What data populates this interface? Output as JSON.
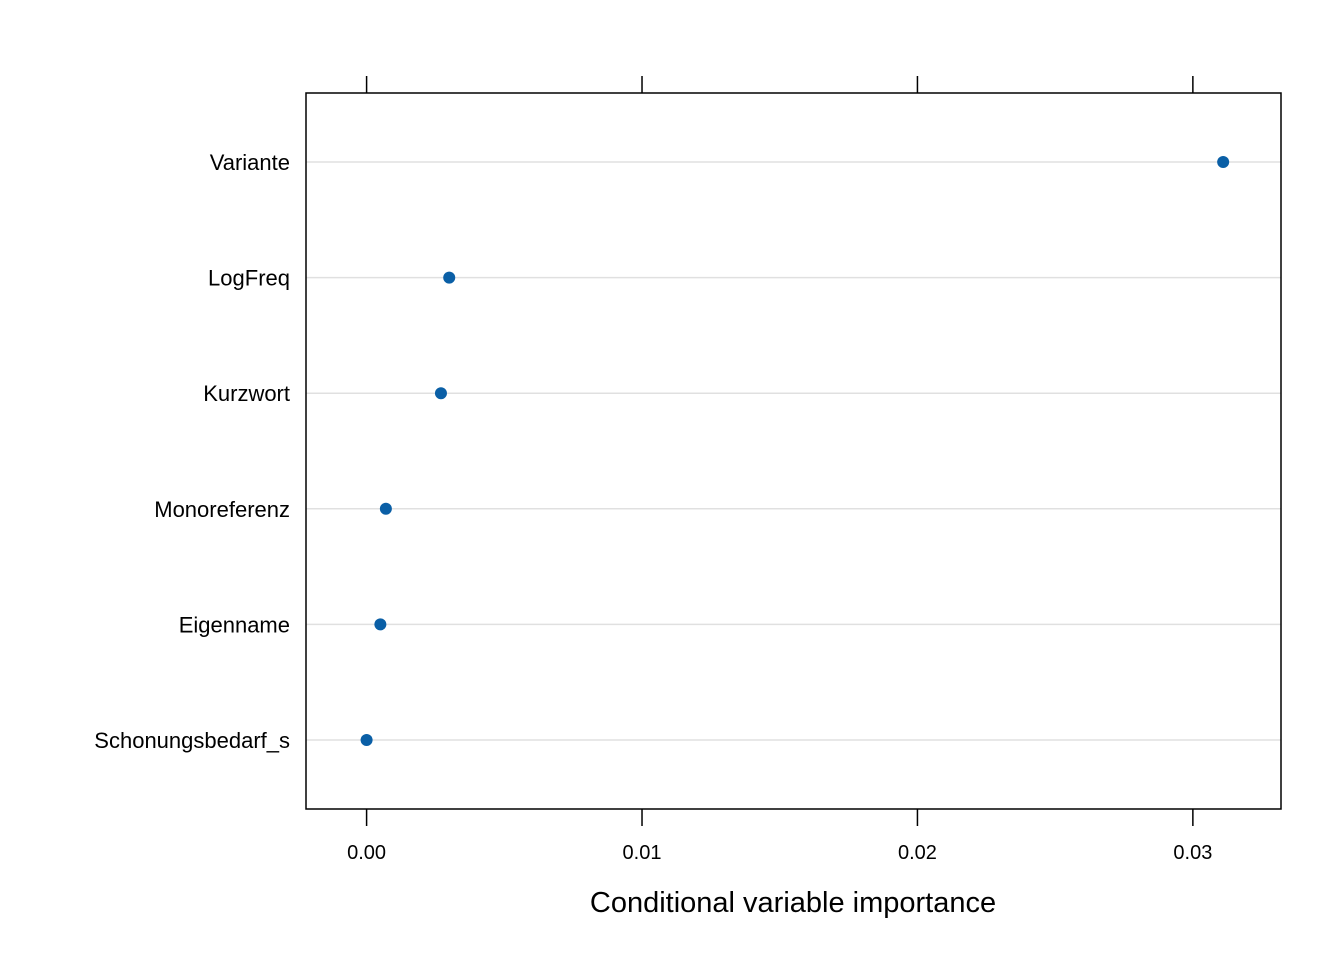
{
  "chart_data": {
    "type": "scatter",
    "subtype": "dotplot",
    "xlabel": "Conditional variable importance",
    "categories": [
      "Variante",
      "LogFreq",
      "Kurzwort",
      "Monoreferenz",
      "Eigenname",
      "Schonungsbedarf_s"
    ],
    "values": [
      0.0311,
      0.003,
      0.0027,
      0.0007,
      0.0005,
      0.0
    ],
    "xlim": [
      -0.0022,
      0.0332
    ],
    "x_ticks": [
      0.0,
      0.01,
      0.02,
      0.03
    ],
    "x_tick_labels": [
      "0.00",
      "0.01",
      "0.02",
      "0.03"
    ],
    "grid": "horizontal",
    "point_color": "#0a5fa6",
    "grid_color": "#e0e0e0"
  }
}
